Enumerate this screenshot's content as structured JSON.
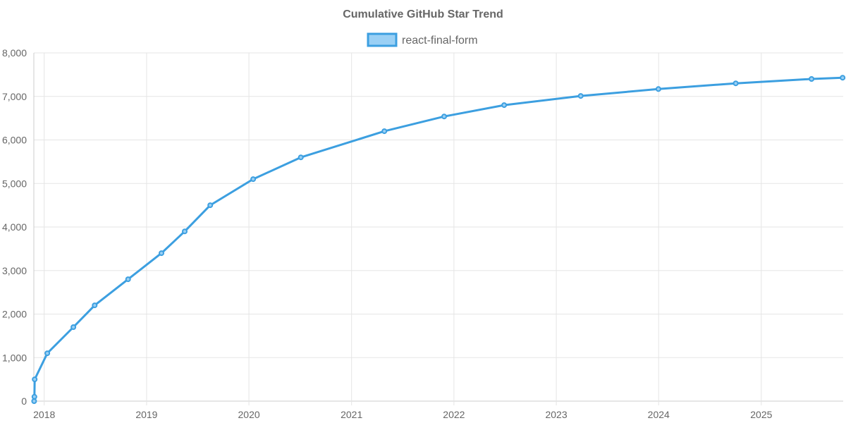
{
  "chart_data": {
    "type": "line",
    "title": "Cumulative GitHub Star Trend",
    "xlabel": "",
    "ylabel": "",
    "x_axis_type": "date",
    "x_ticks": [
      "2018",
      "2019",
      "2020",
      "2021",
      "2022",
      "2023",
      "2024",
      "2025"
    ],
    "xlim": [
      "2017-11-25",
      "2025-10-20"
    ],
    "ylim": [
      0,
      8000
    ],
    "y_ticks": [
      0,
      1000,
      2000,
      3000,
      4000,
      5000,
      6000,
      7000,
      8000
    ],
    "y_tick_labels": [
      "0",
      "1,000",
      "2,000",
      "3,000",
      "4,000",
      "5,000",
      "6,000",
      "7,000",
      "8,000"
    ],
    "grid": true,
    "legend": "top-center",
    "series": [
      {
        "name": "react-final-form",
        "color": "#3c9fe0",
        "fill": "#9ad0f5",
        "x": [
          "2017-11-26",
          "2017-11-27",
          "2017-11-28",
          "2018-01-12",
          "2018-04-15",
          "2018-06-30",
          "2018-10-27",
          "2019-02-23",
          "2019-05-17",
          "2019-08-16",
          "2020-01-16",
          "2020-07-04",
          "2021-04-28",
          "2021-11-27",
          "2022-06-29",
          "2023-03-29",
          "2023-12-31",
          "2024-10-02",
          "2025-06-29",
          "2025-10-18"
        ],
        "y": [
          0,
          100,
          500,
          1100,
          1700,
          2200,
          2800,
          3400,
          3900,
          4500,
          5100,
          5600,
          6200,
          6540,
          6800,
          7010,
          7170,
          7300,
          7400,
          7430
        ]
      }
    ]
  }
}
